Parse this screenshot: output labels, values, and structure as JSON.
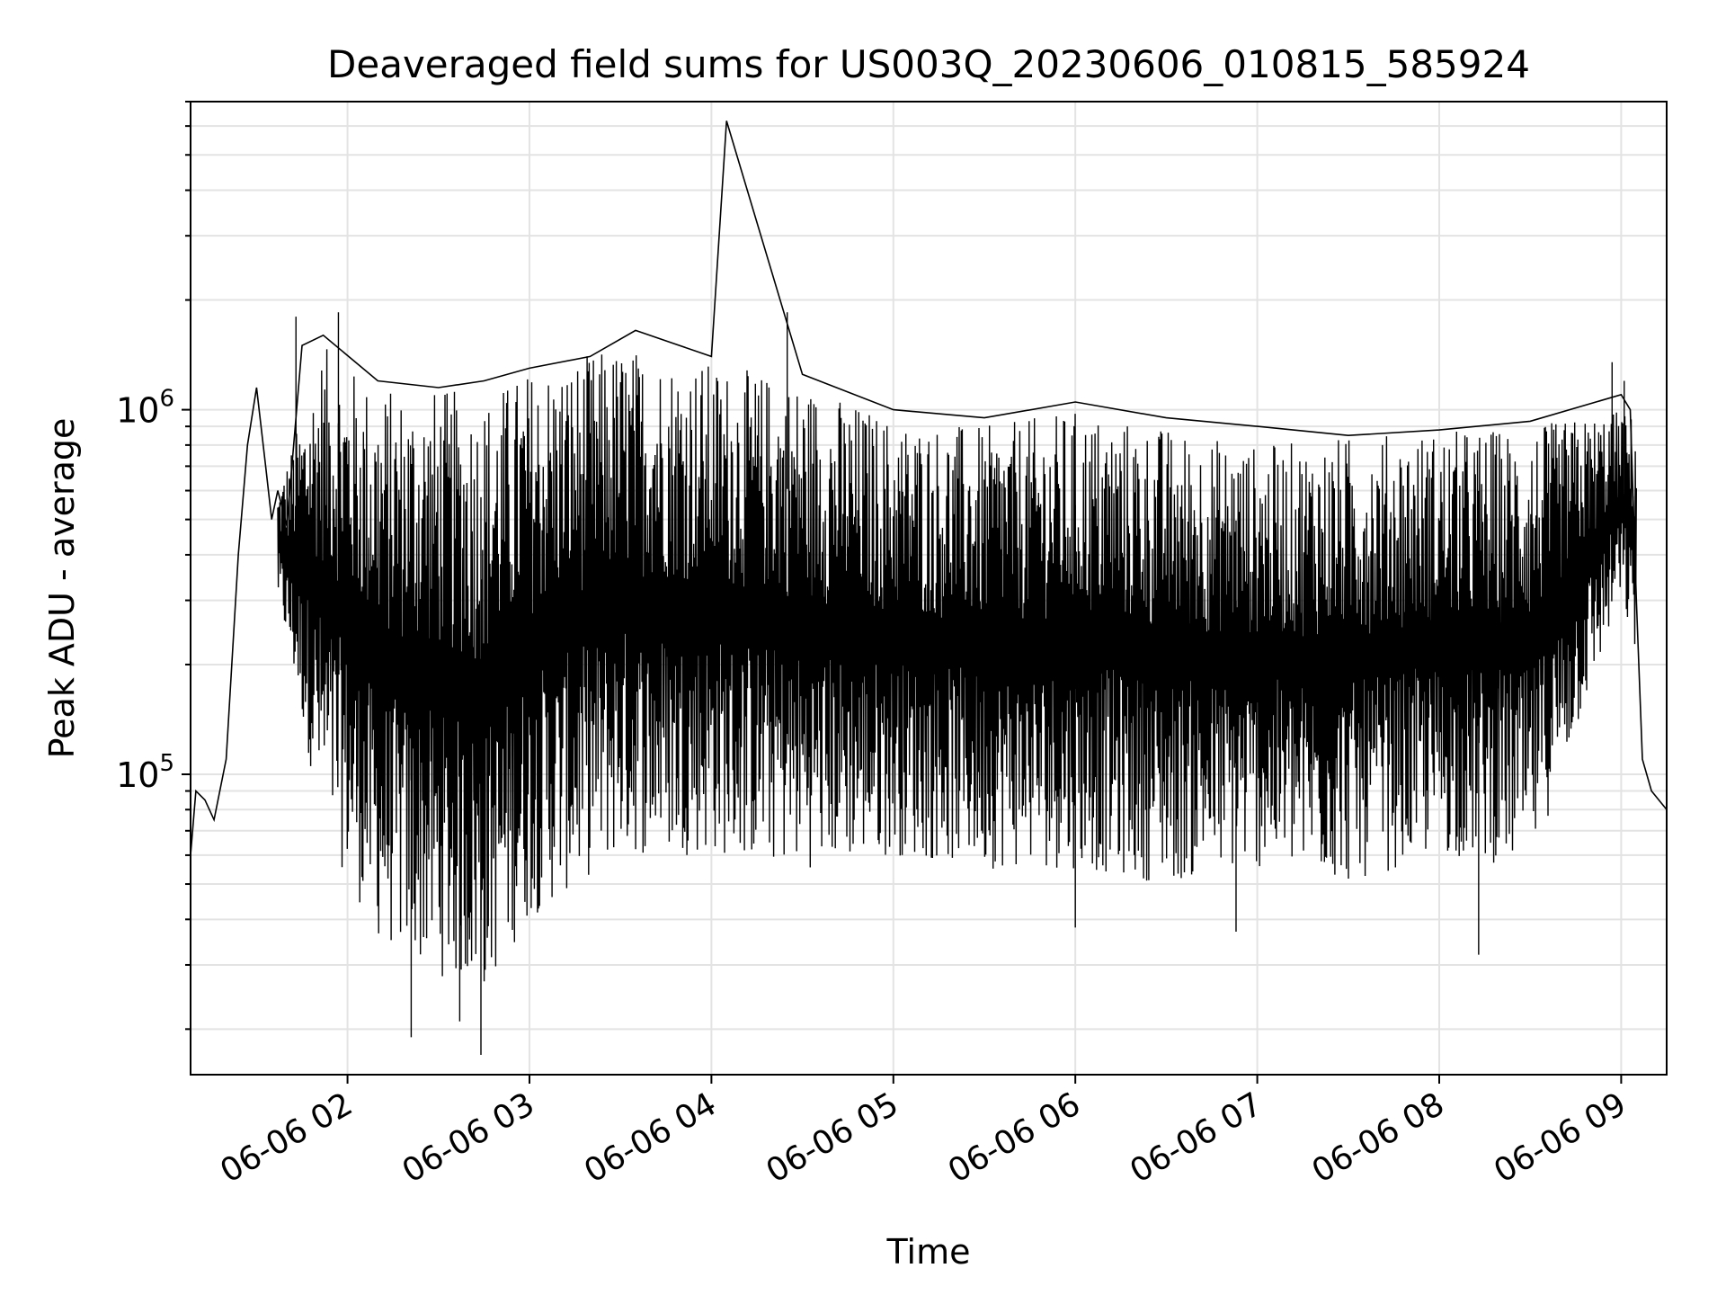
{
  "chart_data": {
    "type": "line",
    "title": "Deaveraged field sums for US003Q_20230606_010815_585924",
    "xlabel": "Time",
    "ylabel": "Peak ADU - average",
    "yscale": "log",
    "xlim": [
      "2023-06-06 01:08:15",
      "2023-06-06 09:15:00"
    ],
    "ylim": [
      15000,
      7000000
    ],
    "grid": true,
    "x_ticks": [
      "06-06 02",
      "06-06 03",
      "06-06 04",
      "06-06 05",
      "06-06 06",
      "06-06 07",
      "06-06 08",
      "06-06 09"
    ],
    "y_ticks": [
      {
        "base": "10",
        "exp": "5"
      },
      {
        "base": "10",
        "exp": "6"
      }
    ],
    "series": [
      {
        "color": "#000000",
        "x": [
          "2023-06-06 01:08:15",
          "2023-06-06 01:10",
          "2023-06-06 01:13",
          "2023-06-06 01:16",
          "2023-06-06 01:20",
          "2023-06-06 01:24",
          "2023-06-06 01:27",
          "2023-06-06 01:30",
          "2023-06-06 01:33",
          "2023-06-06 01:35",
          "2023-06-06 01:37",
          "2023-06-06 01:40",
          "2023-06-06 01:45",
          "2023-06-06 01:52",
          "2023-06-06 02:10",
          "2023-06-06 02:30",
          "2023-06-06 02:45",
          "2023-06-06 03:00",
          "2023-06-06 03:20",
          "2023-06-06 03:35",
          "2023-06-06 04:00",
          "2023-06-06 04:05",
          "2023-06-06 04:30",
          "2023-06-06 05:00",
          "2023-06-06 05:30",
          "2023-06-06 06:00",
          "2023-06-06 06:30",
          "2023-06-06 07:00",
          "2023-06-06 07:30",
          "2023-06-06 08:00",
          "2023-06-06 08:30",
          "2023-06-06 09:00",
          "2023-06-06 09:03",
          "2023-06-06 09:05",
          "2023-06-06 09:07",
          "2023-06-06 09:10",
          "2023-06-06 09:15"
        ],
        "y": [
          60000,
          90000,
          85000,
          75000,
          110000,
          400000,
          800000,
          1150000,
          700000,
          500000,
          600000,
          480000,
          1500000,
          1600000,
          1200000,
          1150000,
          1200000,
          1300000,
          1400000,
          1650000,
          1400000,
          6200000,
          1250000,
          1000000,
          950000,
          1050000,
          950000,
          900000,
          850000,
          880000,
          930000,
          1100000,
          1000000,
          300000,
          110000,
          90000,
          80000
        ]
      }
    ],
    "noise_band": {
      "x": [
        "2023-06-06 01:37",
        "2023-06-06 01:52",
        "2023-06-06 02:10",
        "2023-06-06 02:30",
        "2023-06-06 02:45",
        "2023-06-06 03:00",
        "2023-06-06 03:30",
        "2023-06-06 04:00",
        "2023-06-06 04:30",
        "2023-06-06 05:00",
        "2023-06-06 05:30",
        "2023-06-06 06:00",
        "2023-06-06 06:30",
        "2023-06-06 07:00",
        "2023-06-06 07:30",
        "2023-06-06 08:00",
        "2023-06-06 08:30",
        "2023-06-06 09:00",
        "2023-06-06 09:05"
      ],
      "upper": [
        600000,
        1500000,
        1150000,
        1150000,
        1100000,
        1300000,
        1500000,
        1350000,
        1200000,
        950000,
        900000,
        1000000,
        900000,
        800000,
        850000,
        880000,
        900000,
        1000000,
        950000
      ],
      "lower": [
        300000,
        70000,
        35000,
        28000,
        25000,
        40000,
        60000,
        60000,
        55000,
        60000,
        55000,
        55000,
        50000,
        55000,
        50000,
        60000,
        55000,
        300000,
        200000
      ],
      "spikes_low": [
        [
          "2023-06-06 02:21",
          19000
        ],
        [
          "2023-06-06 02:44",
          17000
        ],
        [
          "2023-06-06 06:53",
          37000
        ],
        [
          "2023-06-06 08:13",
          32000
        ],
        [
          "2023-06-06 06:00",
          38000
        ],
        [
          "2023-06-06 02:37",
          21000
        ]
      ],
      "spikes_high": [
        [
          "2023-06-06 01:43",
          1800000
        ],
        [
          "2023-06-06 01:57",
          1850000
        ],
        [
          "2023-06-06 04:25",
          1850000
        ],
        [
          "2023-06-06 08:57",
          1350000
        ],
        [
          "2023-06-06 09:01",
          1200000
        ]
      ]
    }
  }
}
